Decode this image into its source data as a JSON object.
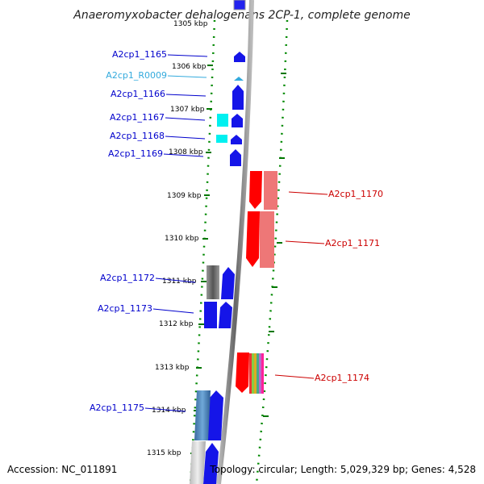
{
  "title": "Anaeromyxobacter dehalogenans 2CP-1, complete genome",
  "footer": {
    "accession": "Accession: NC_011891",
    "topology": "Topology: circular; Length: 5,029,329 bp; Genes: 4,528"
  },
  "colors": {
    "forward": "#0000ee",
    "reverse": "#dd0000",
    "rna": "#33bbee",
    "tick": "#007700",
    "backbone": "#888888"
  },
  "kbp_ticks": [
    "1305 kbp",
    "1306 kbp",
    "1307 kbp",
    "1308 kbp",
    "1309 kbp",
    "1310 kbp",
    "1311 kbp",
    "1312 kbp",
    "1313 kbp",
    "1314 kbp",
    "1315 kbp"
  ],
  "genes_left": [
    {
      "label": "A2cp1_1165",
      "color": "#0000cc"
    },
    {
      "label": "A2cp1_R0009",
      "color": "#33aadd"
    },
    {
      "label": "A2cp1_1166",
      "color": "#0000cc"
    },
    {
      "label": "A2cp1_1167",
      "color": "#0000cc"
    },
    {
      "label": "A2cp1_1168",
      "color": "#0000cc"
    },
    {
      "label": "A2cp1_1169",
      "color": "#0000cc"
    },
    {
      "label": "A2cp1_1172",
      "color": "#0000cc"
    },
    {
      "label": "A2cp1_1173",
      "color": "#0000cc"
    },
    {
      "label": "A2cp1_1175",
      "color": "#0000cc"
    }
  ],
  "genes_right": [
    {
      "label": "A2cp1_1170",
      "color": "#cc0000"
    },
    {
      "label": "A2cp1_1171",
      "color": "#cc0000"
    },
    {
      "label": "A2cp1_1174",
      "color": "#cc0000"
    }
  ]
}
